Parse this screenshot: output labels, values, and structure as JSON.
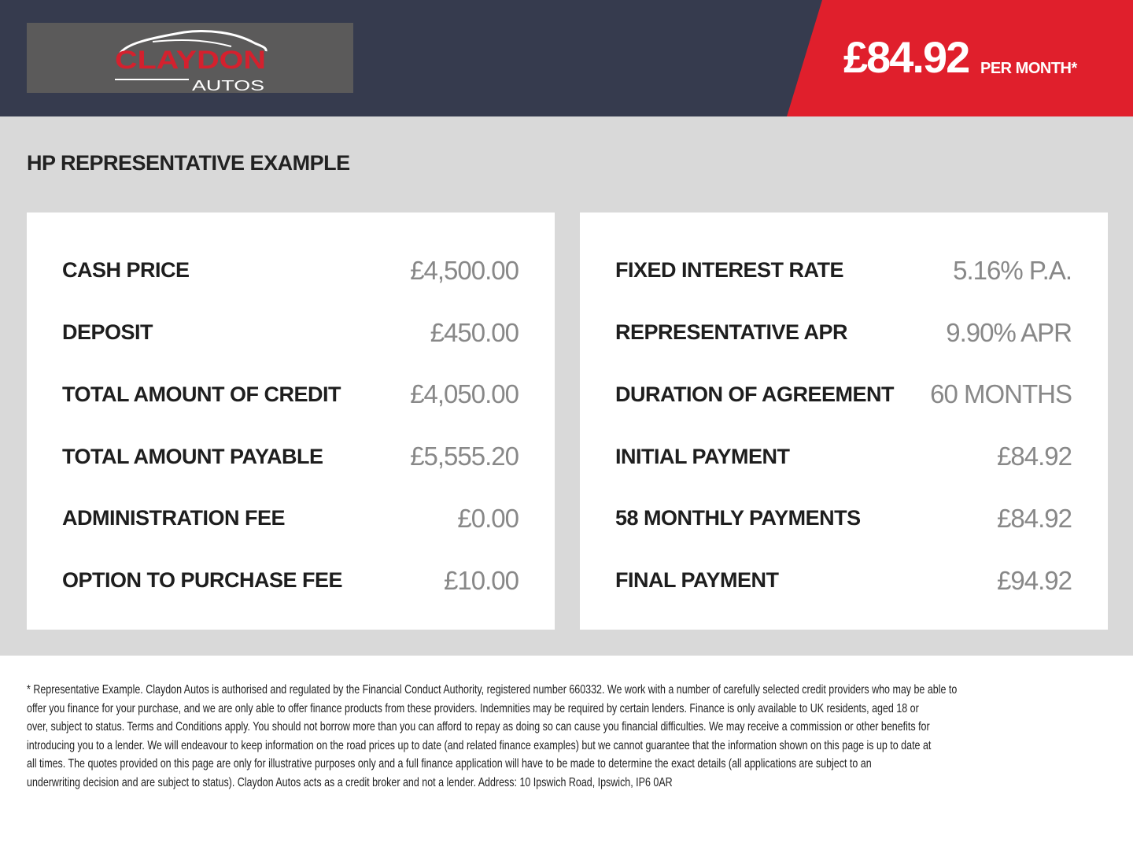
{
  "brand": {
    "name": "CLAYDON",
    "sub": "AUTOS"
  },
  "header": {
    "price": "£84.92",
    "per_month": "PER MONTH*"
  },
  "colors": {
    "header": "#363b4e",
    "accent": "#e01f2c",
    "panel": "#d9d9d9",
    "logo_bg": "#5b5a5a"
  },
  "title": "HP REPRESENTATIVE EXAMPLE",
  "left": [
    {
      "label": "CASH PRICE",
      "value": "£4,500.00"
    },
    {
      "label": "DEPOSIT",
      "value": "£450.00"
    },
    {
      "label": "TOTAL AMOUNT OF CREDIT",
      "value": "£4,050.00"
    },
    {
      "label": "TOTAL AMOUNT PAYABLE",
      "value": "£5,555.20"
    },
    {
      "label": "ADMINISTRATION FEE",
      "value": "£0.00"
    },
    {
      "label": "OPTION TO PURCHASE FEE",
      "value": "£10.00"
    }
  ],
  "right": [
    {
      "label": "FIXED INTEREST RATE",
      "value": "5.16% P.A."
    },
    {
      "label": "REPRESENTATIVE APR",
      "value": "9.90% APR"
    },
    {
      "label": "DURATION OF AGREEMENT",
      "value": "60 MONTHS"
    },
    {
      "label": "INITIAL PAYMENT",
      "value": "£84.92"
    },
    {
      "label": "58 MONTHLY PAYMENTS",
      "value": "£84.92"
    },
    {
      "label": "FINAL PAYMENT",
      "value": "£94.92"
    }
  ],
  "disclaimer": [
    "* Representative Example. Claydon Autos is authorised and regulated by the Financial Conduct Authority, registered number 660332. We work with a number of carefully selected credit providers who may be able to",
    "offer you finance for your purchase, and we are only able to offer finance products from these providers. Indemnities may be required by certain lenders. Finance is only available to UK residents, aged 18 or",
    "over, subject to status. Terms and Conditions apply. You should not borrow more than you can afford to repay as doing so can cause you financial difficulties. We may receive a commission or other benefits for",
    "introducing you to a lender. We will endeavour to keep information on the road prices up to date (and related finance examples) but we cannot guarantee that the information shown on this page is up to date at",
    "all times. The quotes provided on this page are only for illustrative purposes only and a full finance application will have to be made to determine the exact details (all applications are subject to an",
    "underwriting decision and are subject to status). Claydon Autos acts as a credit broker and not a lender. Address:  10 Ipswich Road, Ipswich, IP6 0AR"
  ]
}
